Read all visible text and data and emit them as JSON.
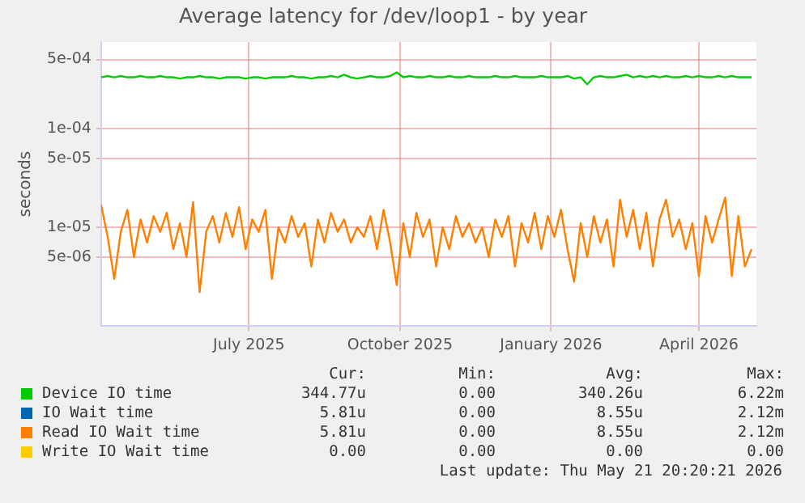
{
  "chart_data": {
    "type": "line",
    "title": "Average latency for /dev/loop1 - by year",
    "ylabel": "seconds",
    "log": "y",
    "grid": true,
    "legend": "bottom",
    "marker": "none",
    "line_style": "solid",
    "xlim": [
      "2025-04-02",
      "2026-05-06"
    ],
    "xticks": [
      {
        "value": "2025-07-01",
        "label": "July 2025"
      },
      {
        "value": "2025-10-01",
        "label": "October 2025"
      },
      {
        "value": "2026-01-01",
        "label": "January 2026"
      },
      {
        "value": "2026-04-01",
        "label": "April 2026"
      }
    ],
    "ylim": [
      1e-06,
      0.00075
    ],
    "yticks": [
      {
        "value": 5e-06,
        "label": "5e-06"
      },
      {
        "value": 1e-05,
        "label": "1e-05"
      },
      {
        "value": 5e-05,
        "label": "5e-05"
      },
      {
        "value": 0.0001,
        "label": "1e-04"
      },
      {
        "value": 0.0005,
        "label": "5e-04"
      }
    ],
    "x": [
      "2025-04-02",
      "2025-04-06",
      "2025-04-10",
      "2025-04-14",
      "2025-04-18",
      "2025-04-22",
      "2025-04-26",
      "2025-04-30",
      "2025-05-04",
      "2025-05-08",
      "2025-05-12",
      "2025-05-16",
      "2025-05-20",
      "2025-05-24",
      "2025-05-28",
      "2025-06-01",
      "2025-06-05",
      "2025-06-09",
      "2025-06-13",
      "2025-06-17",
      "2025-06-21",
      "2025-06-25",
      "2025-06-29",
      "2025-07-03",
      "2025-07-07",
      "2025-07-11",
      "2025-07-15",
      "2025-07-19",
      "2025-07-23",
      "2025-07-27",
      "2025-07-31",
      "2025-08-04",
      "2025-08-08",
      "2025-08-12",
      "2025-08-16",
      "2025-08-20",
      "2025-08-24",
      "2025-08-28",
      "2025-09-01",
      "2025-09-05",
      "2025-09-09",
      "2025-09-13",
      "2025-09-17",
      "2025-09-21",
      "2025-09-25",
      "2025-09-29",
      "2025-10-03",
      "2025-10-07",
      "2025-10-11",
      "2025-10-15",
      "2025-10-19",
      "2025-10-23",
      "2025-10-27",
      "2025-10-31",
      "2025-11-04",
      "2025-11-08",
      "2025-11-12",
      "2025-11-16",
      "2025-11-20",
      "2025-11-24",
      "2025-11-28",
      "2025-12-02",
      "2025-12-06",
      "2025-12-10",
      "2025-12-14",
      "2025-12-18",
      "2025-12-22",
      "2025-12-26",
      "2025-12-30",
      "2026-01-03",
      "2026-01-07",
      "2026-01-11",
      "2026-01-15",
      "2026-01-19",
      "2026-01-23",
      "2026-01-27",
      "2026-01-31",
      "2026-02-04",
      "2026-02-08",
      "2026-02-12",
      "2026-02-16",
      "2026-02-20",
      "2026-02-24",
      "2026-02-28",
      "2026-03-04",
      "2026-03-08",
      "2026-03-12",
      "2026-03-16",
      "2026-03-20",
      "2026-03-24",
      "2026-03-28",
      "2026-04-01",
      "2026-04-05",
      "2026-04-09",
      "2026-04-13",
      "2026-04-17",
      "2026-04-21",
      "2026-04-25",
      "2026-04-29",
      "2026-05-03"
    ],
    "series": [
      {
        "name": "Device IO time",
        "color": "#00cc00",
        "values": [
          0.00033,
          0.00034,
          0.00033,
          0.00034,
          0.00033,
          0.00033,
          0.00034,
          0.00033,
          0.00033,
          0.00034,
          0.00033,
          0.00033,
          0.00032,
          0.00033,
          0.00033,
          0.00034,
          0.00033,
          0.00033,
          0.00032,
          0.00033,
          0.00033,
          0.00033,
          0.00032,
          0.00033,
          0.00033,
          0.00032,
          0.00033,
          0.00033,
          0.00033,
          0.00034,
          0.00033,
          0.00033,
          0.00032,
          0.00033,
          0.00033,
          0.00034,
          0.00033,
          0.00035,
          0.00033,
          0.00032,
          0.00033,
          0.00034,
          0.00033,
          0.00033,
          0.00034,
          0.00037,
          0.00033,
          0.00034,
          0.00033,
          0.00033,
          0.00034,
          0.00033,
          0.00033,
          0.00034,
          0.00033,
          0.00033,
          0.00034,
          0.00033,
          0.00033,
          0.00033,
          0.00034,
          0.00033,
          0.00033,
          0.00034,
          0.00033,
          0.00033,
          0.00033,
          0.00034,
          0.00033,
          0.00033,
          0.00033,
          0.00034,
          0.00032,
          0.00033,
          0.00028,
          0.00033,
          0.00034,
          0.00033,
          0.00033,
          0.00034,
          0.00035,
          0.00033,
          0.00034,
          0.00033,
          0.00034,
          0.00033,
          0.00034,
          0.00033,
          0.00033,
          0.00034,
          0.00033,
          0.00034,
          0.00033,
          0.00033,
          0.00034,
          0.00033,
          0.00034,
          0.00033,
          0.00033,
          0.00033
        ]
      },
      {
        "name": "IO Wait time",
        "color": "#0066b3",
        "values": [
          null,
          null,
          null,
          null,
          null,
          null,
          null,
          null,
          null,
          null,
          null,
          null,
          null,
          null,
          null,
          null,
          null,
          null,
          null,
          null,
          null,
          null,
          null,
          null,
          null,
          null,
          null,
          null,
          null,
          null,
          null,
          null,
          null,
          null,
          null,
          null,
          null,
          null,
          null,
          null,
          null,
          null,
          null,
          null,
          null,
          null,
          null,
          null,
          null,
          null,
          null,
          null,
          null,
          null,
          null,
          null,
          null,
          null,
          null,
          null,
          null,
          null,
          null,
          null,
          null,
          null,
          null,
          null,
          null,
          null,
          null,
          null,
          null,
          null,
          null,
          null,
          null,
          null,
          null,
          null,
          null,
          null,
          null,
          null,
          null,
          null,
          null,
          null,
          null,
          null,
          null,
          null,
          null,
          null,
          null,
          null,
          null,
          null,
          null,
          null
        ]
      },
      {
        "name": "Read IO Wait time",
        "color": "#ff8000",
        "values": [
          1.7e-05,
          8e-06,
          3e-06,
          9e-06,
          1.5e-05,
          5e-06,
          1.2e-05,
          7e-06,
          1.3e-05,
          9e-06,
          1.4e-05,
          6e-06,
          1.1e-05,
          5e-06,
          1.8e-05,
          2.2e-06,
          9e-06,
          1.3e-05,
          7e-06,
          1.4e-05,
          8e-06,
          1.6e-05,
          6e-06,
          1.2e-05,
          9e-06,
          1.5e-05,
          3e-06,
          1e-05,
          7e-06,
          1.3e-05,
          8e-06,
          1.1e-05,
          4e-06,
          1.2e-05,
          7e-06,
          1.4e-05,
          9e-06,
          1.2e-05,
          7e-06,
          1e-05,
          8e-06,
          1.3e-05,
          6e-06,
          1.5e-05,
          7e-06,
          2.6e-06,
          1.1e-05,
          5e-06,
          1.4e-05,
          8e-06,
          1.2e-05,
          4e-06,
          1e-05,
          6e-06,
          1.3e-05,
          8e-06,
          1.1e-05,
          7e-06,
          1e-05,
          5e-06,
          1.2e-05,
          8e-06,
          1.3e-05,
          4e-06,
          1.1e-05,
          7e-06,
          1.4e-05,
          6e-06,
          1.3e-05,
          8e-06,
          1.5e-05,
          6e-06,
          2.8e-06,
          1.1e-05,
          5e-06,
          1.3e-05,
          7e-06,
          1.2e-05,
          4e-06,
          1.9e-05,
          8e-06,
          1.5e-05,
          6e-06,
          1.4e-05,
          4e-06,
          1.2e-05,
          1.9e-05,
          8e-06,
          1.2e-05,
          6e-06,
          1.1e-05,
          3.2e-06,
          1.3e-05,
          7e-06,
          1.2e-05,
          2e-05,
          3.2e-06,
          1.3e-05,
          4e-06,
          6e-06
        ]
      },
      {
        "name": "Write IO Wait time",
        "color": "#ffcc00",
        "values": [
          null,
          null,
          null,
          null,
          null,
          null,
          null,
          null,
          null,
          null,
          null,
          null,
          null,
          null,
          null,
          null,
          null,
          null,
          null,
          null,
          null,
          null,
          null,
          null,
          null,
          null,
          null,
          null,
          null,
          null,
          null,
          null,
          null,
          null,
          null,
          null,
          null,
          null,
          null,
          null,
          null,
          null,
          null,
          null,
          null,
          null,
          null,
          null,
          null,
          null,
          null,
          null,
          null,
          null,
          null,
          null,
          null,
          null,
          null,
          null,
          null,
          null,
          null,
          null,
          null,
          null,
          null,
          null,
          null,
          null,
          null,
          null,
          null,
          null,
          null,
          null,
          null,
          null,
          null,
          null,
          null,
          null,
          null,
          null,
          null,
          null,
          null,
          null,
          null,
          null,
          null,
          null,
          null,
          null,
          null,
          null,
          null,
          null,
          null,
          null
        ]
      }
    ],
    "annotations": [
      "Cur:",
      "Min:",
      "Avg:",
      "Max:",
      "344.77u",
      "0.00",
      "340.26u",
      "6.22m",
      "5.81u",
      "0.00",
      "8.55u",
      "2.12m",
      "5.81u",
      "0.00",
      "8.55u",
      "2.12m",
      "0.00",
      "0.00",
      "0.00",
      "0.00",
      "Last update: Thu May 21 20:20:21 2026"
    ]
  }
}
